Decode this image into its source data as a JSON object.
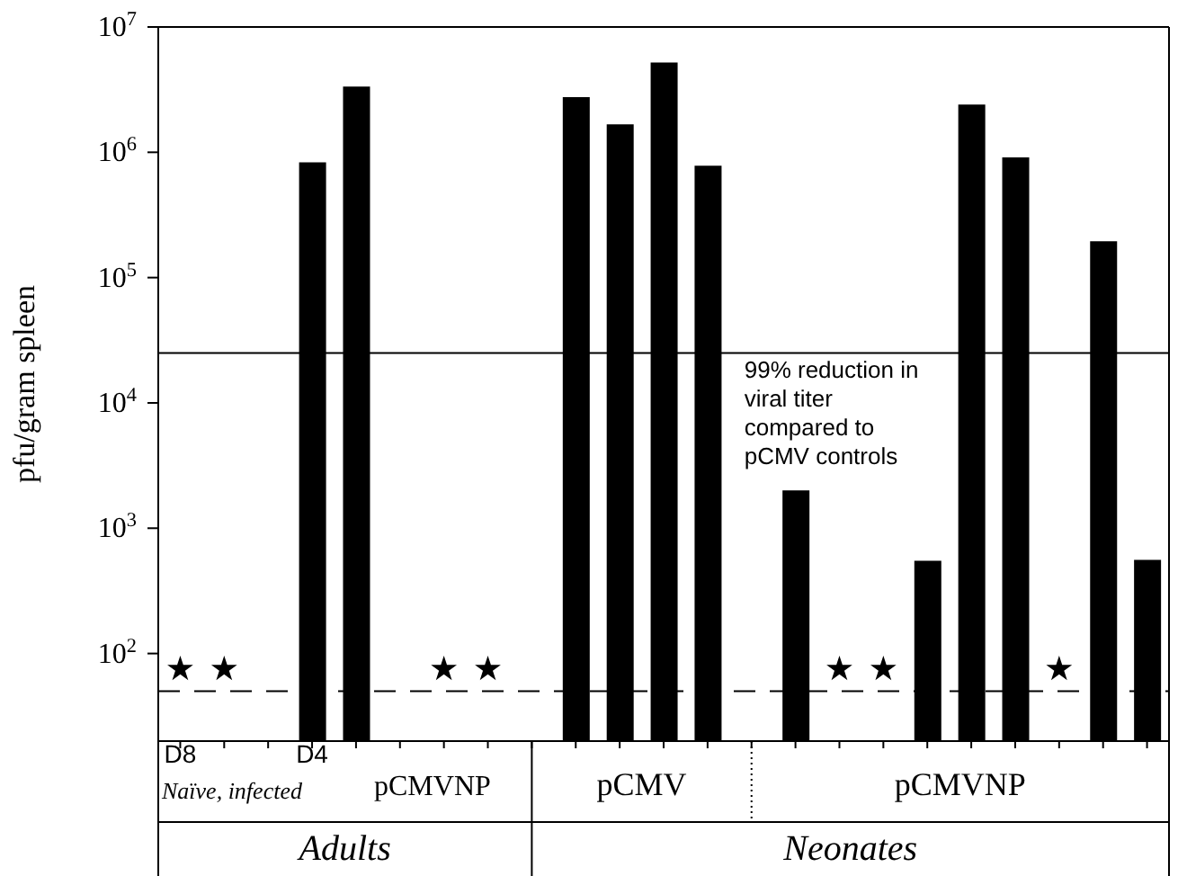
{
  "chart_data": {
    "type": "bar",
    "ylabel": "pfu/gram spleen",
    "log": "y",
    "ylim": [
      20,
      10000000
    ],
    "yticks": [
      {
        "value": 100,
        "label": "10$^{2}$"
      },
      {
        "value": 1000,
        "label": "10$^{3}$"
      },
      {
        "value": 10000,
        "label": "10$^{4}$"
      },
      {
        "value": 100000,
        "label": "10$^{5}$"
      },
      {
        "value": 1000000,
        "label": "10$^{6}$"
      },
      {
        "value": 10000000,
        "label": "10$^{7}$"
      }
    ],
    "categories": [
      "D8",
      null,
      null,
      "D4",
      null,
      null,
      null,
      null,
      null,
      null,
      null,
      null,
      null,
      null,
      null,
      null,
      null,
      null,
      null,
      null,
      null,
      null,
      null
    ],
    "series": [
      {
        "color": "#000000",
        "values": [
          null,
          null,
          null,
          830000,
          3350000,
          null,
          null,
          null,
          null,
          2750000,
          1670000,
          5200000,
          780000,
          null,
          2000,
          null,
          null,
          550,
          2400000,
          910000,
          null,
          195000,
          560
        ]
      },
      {
        "type": "scatter",
        "marker": "star",
        "color": "#000000",
        "values": [
          75,
          75,
          null,
          null,
          null,
          null,
          75,
          75,
          null,
          null,
          null,
          null,
          null,
          null,
          null,
          75,
          75,
          null,
          null,
          null,
          75,
          null,
          null
        ]
      }
    ],
    "ref_lines": [
      {
        "axis": "y",
        "value": 25000,
        "color": "#000000",
        "line_style": "solid"
      },
      {
        "axis": "y",
        "value": 50,
        "color": "#000000",
        "line_style": "dashed"
      }
    ],
    "annotations": [
      "99% reduction in viral titer compared to pCMV controls",
      "Naïve, infected",
      "pCMVNP",
      "pCMV",
      "pCMVNP",
      "Adults",
      "Neonates"
    ],
    "grid": false,
    "legend": false
  }
}
